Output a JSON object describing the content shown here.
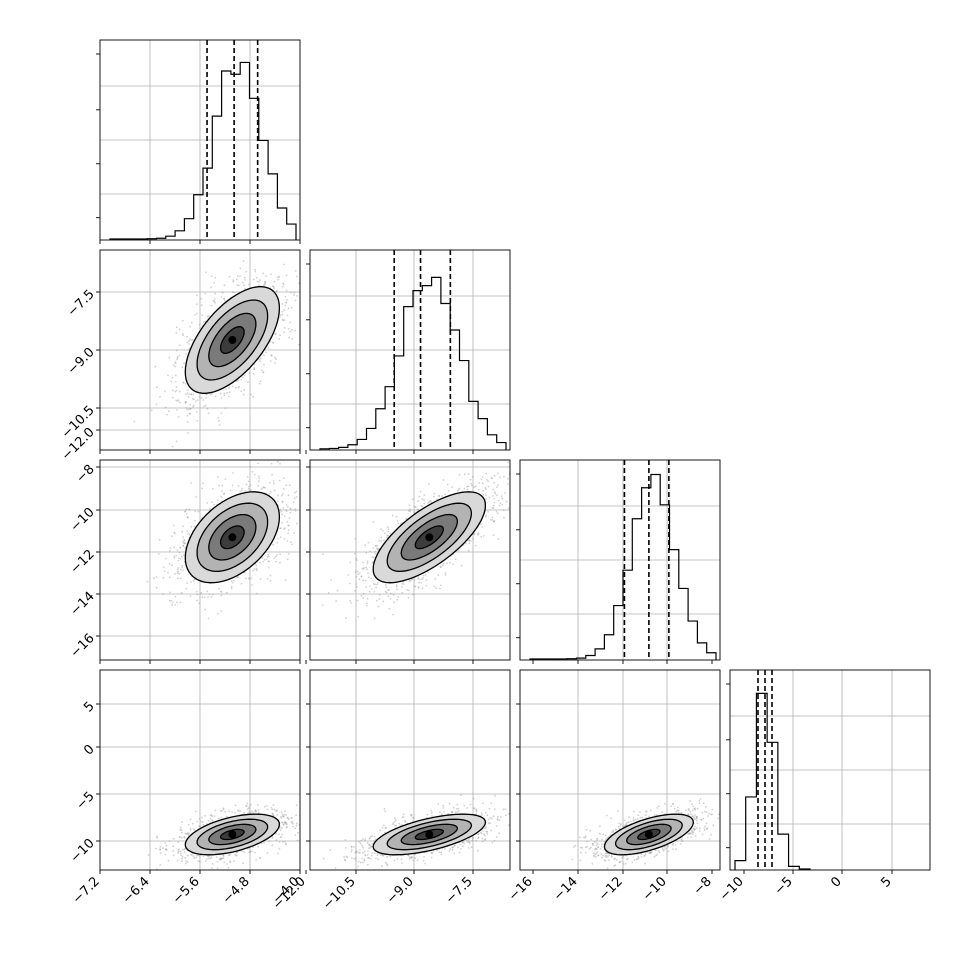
{
  "chart_data": [
    {
      "panel": "hist-1",
      "type": "histogram",
      "variable": 1,
      "x_ticks": [
        "−7.2",
        "−6.4",
        "−5.6",
        "−4.8",
        "−4.0"
      ],
      "xlim": [
        -7.4,
        -4.0
      ],
      "quantiles": [
        -5.58,
        -5.12,
        -4.72
      ],
      "peak": -5.05,
      "width": 0.4,
      "y_ticks_labeled": false
    },
    {
      "panel": "hist-2",
      "type": "histogram",
      "variable": 2,
      "x_ticks": [
        "−12.0",
        "−10.5",
        "−9.0",
        "−7.5"
      ],
      "xlim": [
        -12.6,
        -6.9
      ],
      "quantiles": [
        -10.2,
        -9.45,
        -8.6
      ],
      "peak": -9.2,
      "width": 0.8,
      "y_ticks_labeled": false
    },
    {
      "panel": "hist-3",
      "type": "histogram",
      "variable": 3,
      "x_ticks": [
        "−16",
        "−14",
        "−12",
        "−10",
        "−8"
      ],
      "xlim": [
        -17.0,
        -8.0
      ],
      "quantiles": [
        -12.3,
        -11.2,
        -10.3
      ],
      "peak": -11.0,
      "width": 1.0,
      "y_ticks_labeled": false
    },
    {
      "panel": "hist-4",
      "type": "histogram",
      "variable": 4,
      "x_ticks": [
        "−10",
        "−5",
        "0",
        "5"
      ],
      "xlim": [
        -12.0,
        8.0
      ],
      "quantiles": [
        -9.2,
        -8.5,
        -7.8
      ],
      "peak": -8.5,
      "width": 1.0,
      "y_ticks_labeled": false
    },
    {
      "panel": "scatter-2-1",
      "type": "scatter-contour",
      "x_var": 1,
      "y_var": 2,
      "y_ticks": [
        "−7.5",
        "−9.0",
        "−10.5",
        "−12.0"
      ],
      "ylim": [
        -12.6,
        -6.6
      ],
      "center": [
        -5.15,
        -9.3
      ],
      "sd": [
        0.4,
        0.8
      ],
      "corr": 0.6
    },
    {
      "panel": "scatter-3-1",
      "type": "scatter-contour",
      "x_var": 1,
      "y_var": 3,
      "y_ticks": [
        "−8",
        "−10",
        "−12",
        "−14",
        "−16"
      ],
      "ylim": [
        -16.6,
        -7.8
      ],
      "center": [
        -5.15,
        -11.2
      ],
      "sd": [
        0.4,
        1.0
      ],
      "corr": 0.45
    },
    {
      "panel": "scatter-3-2",
      "type": "scatter-contour",
      "x_var": 2,
      "y_var": 3,
      "center": [
        -9.2,
        -11.2
      ],
      "sd": [
        0.8,
        1.0
      ],
      "corr": 0.7
    },
    {
      "panel": "scatter-4-1",
      "type": "scatter-contour",
      "x_var": 1,
      "y_var": 4,
      "y_ticks": [
        "5",
        "0",
        "−5",
        "−10"
      ],
      "ylim": [
        -12.2,
        7.5
      ],
      "center": [
        -5.15,
        -8.7
      ],
      "sd": [
        0.4,
        1.0
      ],
      "corr": 0.5
    },
    {
      "panel": "scatter-4-2",
      "type": "scatter-contour",
      "x_var": 2,
      "y_var": 4,
      "center": [
        -9.2,
        -8.7
      ],
      "sd": [
        0.8,
        1.0
      ],
      "corr": 0.6
    },
    {
      "panel": "scatter-4-3",
      "type": "scatter-contour",
      "x_var": 3,
      "y_var": 4,
      "center": [
        -11.2,
        -8.7
      ],
      "sd": [
        1.0,
        1.0
      ],
      "corr": 0.6
    }
  ],
  "colors": {
    "density": "#000000",
    "points": "#9a9a9a"
  }
}
